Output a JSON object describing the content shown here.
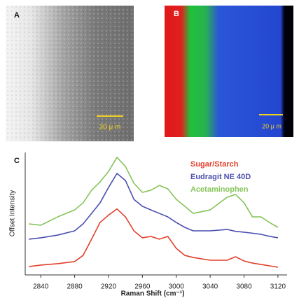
{
  "panels": [
    {
      "label": "A",
      "scale_bar": "20 μ m"
    },
    {
      "label": "B",
      "scale_bar": "20 μ m"
    }
  ],
  "chart_data": {
    "type": "line",
    "panel_label": "C",
    "x_label": "Raman Shift (cm⁻¹)",
    "y_label": "Offset Intensity",
    "x": [
      2826,
      2840,
      2860,
      2880,
      2890,
      2900,
      2910,
      2920,
      2930,
      2940,
      2950,
      2960,
      2970,
      2980,
      2990,
      3000,
      3010,
      3020,
      3040,
      3060,
      3070,
      3080,
      3090,
      3100,
      3110,
      3120
    ],
    "xlim": [
      2820,
      3130
    ],
    "xticks": [
      2840,
      2880,
      2920,
      2960,
      3000,
      3040,
      3080,
      3120
    ],
    "ylim": [
      0,
      100
    ],
    "series": [
      {
        "name": "Sugar/Starch",
        "color": "#e2402c",
        "values": [
          6.7,
          7.9,
          9.0,
          10.7,
          15.7,
          28.7,
          42.1,
          48.0,
          53.0,
          46.6,
          35.4,
          29.8,
          30.9,
          28.7,
          30.9,
          21.3,
          15.7,
          14.0,
          11.8,
          11.8,
          14.6,
          11.2,
          9.5,
          8.4,
          7.3,
          6.2
        ]
      },
      {
        "name": "Eudragit NE 40D",
        "color": "#4b4fb0",
        "values": [
          28.7,
          29.8,
          32.0,
          35.4,
          41.0,
          49.4,
          57.9,
          70.2,
          81.5,
          75.8,
          60.7,
          55.1,
          52.2,
          49.4,
          46.6,
          42.1,
          38.2,
          35.4,
          35.4,
          36.5,
          35.0,
          34.3,
          33.5,
          32.6,
          31.0,
          29.8
        ]
      },
      {
        "name": "Acetaminophen",
        "color": "#86c45a",
        "values": [
          41.0,
          39.9,
          46.6,
          52.2,
          57.9,
          68.0,
          74.7,
          83.1,
          94.4,
          87.1,
          73.6,
          66.3,
          68.0,
          71.9,
          69.1,
          60.7,
          55.1,
          49.4,
          52.2,
          62.4,
          64.6,
          57.9,
          46.6,
          46.6,
          42.1,
          38.2
        ]
      }
    ]
  }
}
